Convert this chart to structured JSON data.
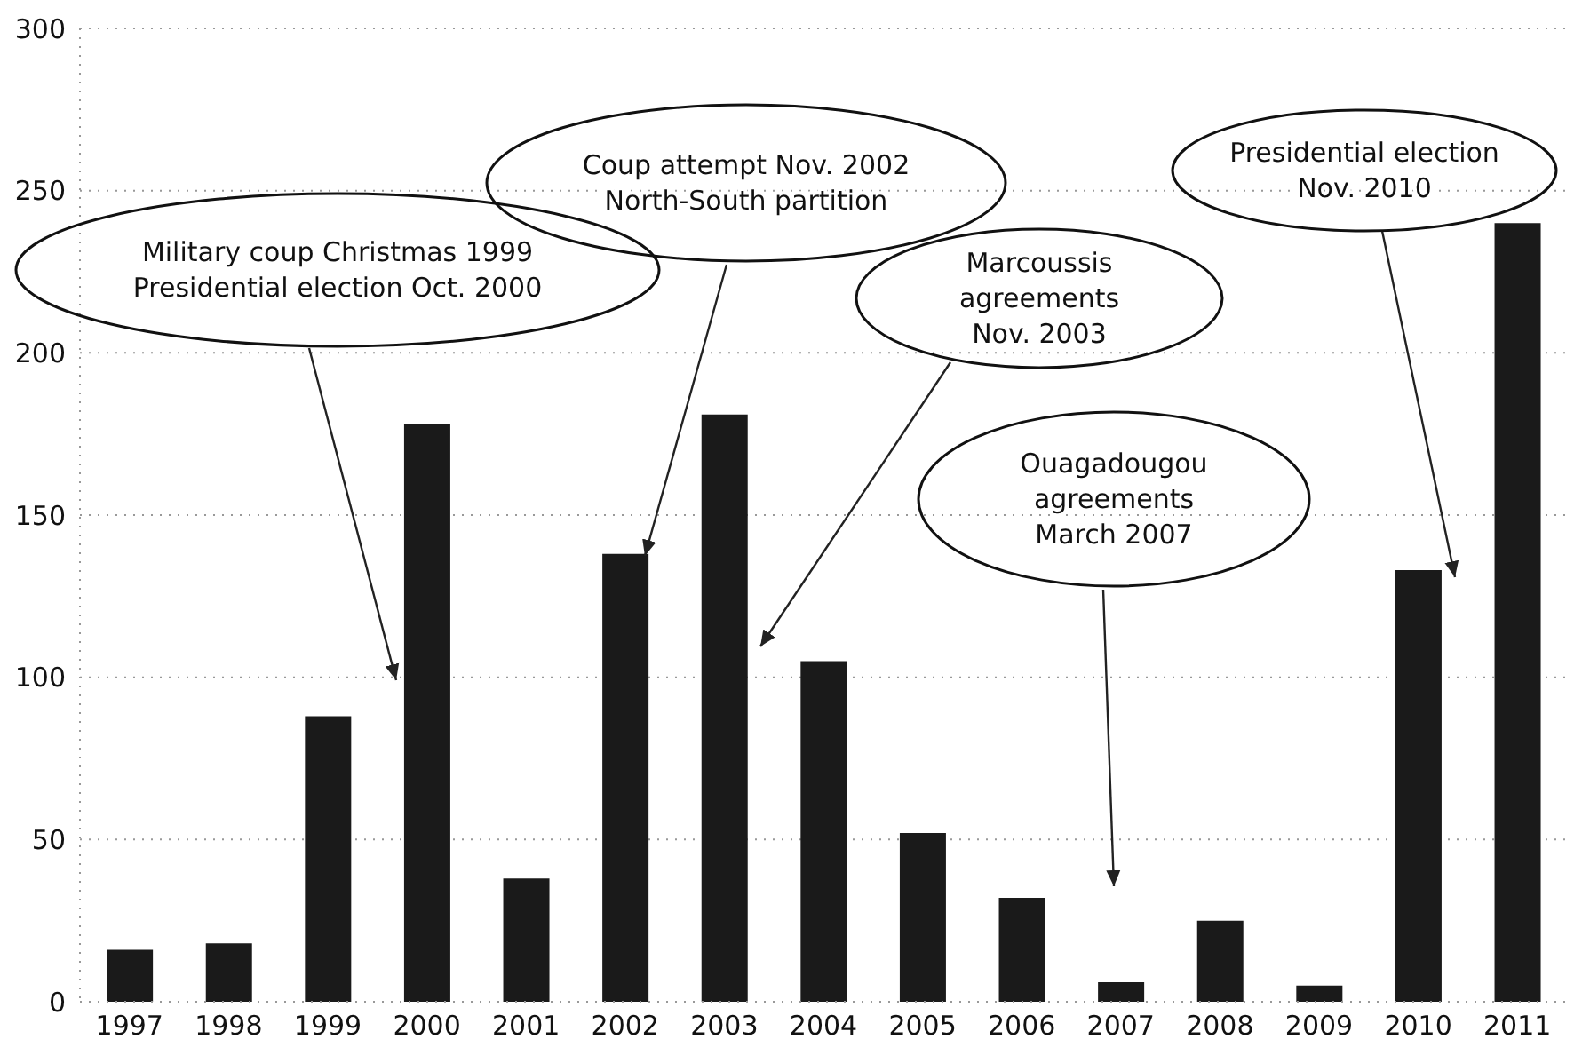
{
  "chart_data": {
    "type": "bar",
    "categories": [
      "1997",
      "1998",
      "1999",
      "2000",
      "2001",
      "2002",
      "2003",
      "2004",
      "2005",
      "2006",
      "2007",
      "2008",
      "2009",
      "2010",
      "2011"
    ],
    "values": [
      16,
      18,
      88,
      178,
      38,
      138,
      181,
      105,
      52,
      32,
      6,
      25,
      5,
      133,
      240
    ],
    "color": "#1a1a1a",
    "ylim": [
      0,
      300
    ],
    "yticks": [
      0,
      50,
      100,
      150,
      200,
      250,
      300
    ],
    "grid": "y",
    "annotations": [
      "Military coup Christmas 1999\nPresidential election Oct. 2000",
      "Coup attempt Nov. 2002\nNorth-South partition",
      "Marcoussis\nagreements\nNov. 2003",
      "Ouagadougou\nagreements\nMarch 2007",
      "Presidential election\nNov. 2010"
    ]
  }
}
